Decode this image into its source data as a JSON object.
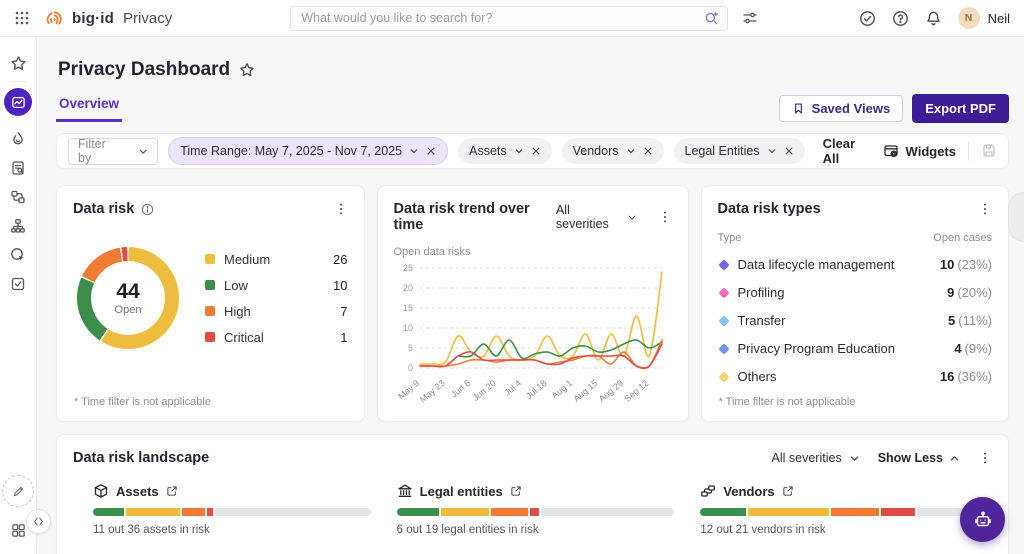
{
  "topbar": {
    "logo_text": "big·id",
    "product": "Privacy",
    "search_placeholder": "What would you like to search for?",
    "user_initial": "N",
    "user_name": "Neil"
  },
  "page": {
    "title": "Privacy Dashboard"
  },
  "tabs": {
    "overview": "Overview"
  },
  "actions": {
    "saved_views": "Saved Views",
    "export_pdf": "Export PDF"
  },
  "filter_bar": {
    "filter_by": "Filter by",
    "chips": [
      {
        "label": "Time Range: May 7, 2025 - Nov 7, 2025",
        "highlighted": true
      },
      {
        "label": "Assets",
        "highlighted": false
      },
      {
        "label": "Vendors",
        "highlighted": false
      },
      {
        "label": "Legal Entities",
        "highlighted": false
      }
    ],
    "clear_all": "Clear All",
    "widgets": "Widgets"
  },
  "colors": {
    "severity": {
      "low": "#3c8f4a",
      "medium": "#eebd3d",
      "high": "#ee7d33",
      "critical": "#e14b45"
    },
    "bar_order": [
      "#3c8f4a",
      "#eebd3d",
      "#ee7d33",
      "#e14b45"
    ],
    "bar_remainder": "#e6e6e9",
    "primary_purple": "#3c1d96"
  },
  "cards": {
    "data_risk": {
      "title": "Data risk",
      "total": "44",
      "total_label": "Open",
      "legend": [
        {
          "label": "Medium",
          "value": 26,
          "color": "#eebd3d"
        },
        {
          "label": "Low",
          "value": 10,
          "color": "#3c8f4a"
        },
        {
          "label": "High",
          "value": 7,
          "color": "#ee7d33"
        },
        {
          "label": "Critical",
          "value": 1,
          "color": "#e14b45"
        }
      ],
      "footnote": "* Time filter is not applicable"
    },
    "trend": {
      "title": "Data risk trend over time",
      "severity_filter": "All severities",
      "chart_data": {
        "type": "line",
        "y_label": "Open data risks",
        "y_ticks": [
          0,
          5,
          10,
          15,
          20,
          25
        ],
        "ylim": [
          0,
          25
        ],
        "x_labels": [
          "May 9",
          "May 23",
          "Jun 6",
          "Jun 20",
          "Jul 4",
          "Jul 18",
          "Aug 1",
          "Aug 15",
          "Aug 29",
          "Sep 12"
        ],
        "series": [
          {
            "name": "Medium",
            "color": "#eebd3d",
            "values": [
              1,
              1,
              1.5,
              8,
              4,
              3,
              8,
              3,
              2,
              3,
              8,
              3,
              3,
              8.5,
              2,
              8.5,
              3,
              13,
              3,
              24
            ]
          },
          {
            "name": "Low",
            "color": "#3c8f4a",
            "values": [
              null,
              null,
              null,
              3,
              3,
              6,
              3,
              7,
              2.5,
              3.5,
              4,
              3,
              5,
              5.5,
              4,
              4.5,
              6,
              7,
              5,
              6.5
            ]
          },
          {
            "name": "High",
            "color": "#ee7d33",
            "values": [
              0.5,
              0.5,
              0.5,
              1,
              2,
              2,
              1.5,
              2,
              2,
              2,
              1,
              1.5,
              2,
              3,
              3,
              1,
              4,
              0.5,
              0.5,
              7
            ]
          },
          {
            "name": "Critical",
            "color": "#e14b45",
            "values": [
              0.5,
              0.5,
              0.5,
              3,
              4,
              2,
              2,
              2,
              2,
              2,
              1,
              1,
              2.5,
              3,
              3,
              3,
              3,
              0.5,
              0.5,
              6
            ]
          }
        ]
      }
    },
    "types": {
      "title": "Data risk types",
      "col_type": "Type",
      "col_cases": "Open cases",
      "rows": [
        {
          "label": "Data lifecycle management",
          "value": "10",
          "pct": "(23%)",
          "color": "#7b61e3"
        },
        {
          "label": "Profiling",
          "value": "9",
          "pct": "(20%)",
          "color": "#f06ec0"
        },
        {
          "label": "Transfer",
          "value": "5",
          "pct": "(11%)",
          "color": "#7cc6e8"
        },
        {
          "label": "Privacy Program Education",
          "value": "4",
          "pct": "(9%)",
          "color": "#6b96f2"
        },
        {
          "label": "Others",
          "value": "16",
          "pct": "(36%)",
          "color": "#f2d478"
        }
      ],
      "footnote": "* Time filter is not applicable"
    },
    "landscape": {
      "title": "Data risk landscape",
      "severity_filter": "All severities",
      "show_less": "Show Less",
      "sections": [
        {
          "label": "Assets",
          "caption": "11 out 36 assets in risk",
          "segments_pct": [
            12,
            20,
            9,
            3
          ]
        },
        {
          "label": "Legal entities",
          "caption": "6 out 19 legal entities in risk",
          "segments_pct": [
            16,
            18,
            14,
            4
          ]
        },
        {
          "label": "Vendors",
          "caption": "12 out 21 vendors in risk",
          "segments_pct": [
            17,
            30,
            18,
            13
          ]
        }
      ]
    }
  }
}
